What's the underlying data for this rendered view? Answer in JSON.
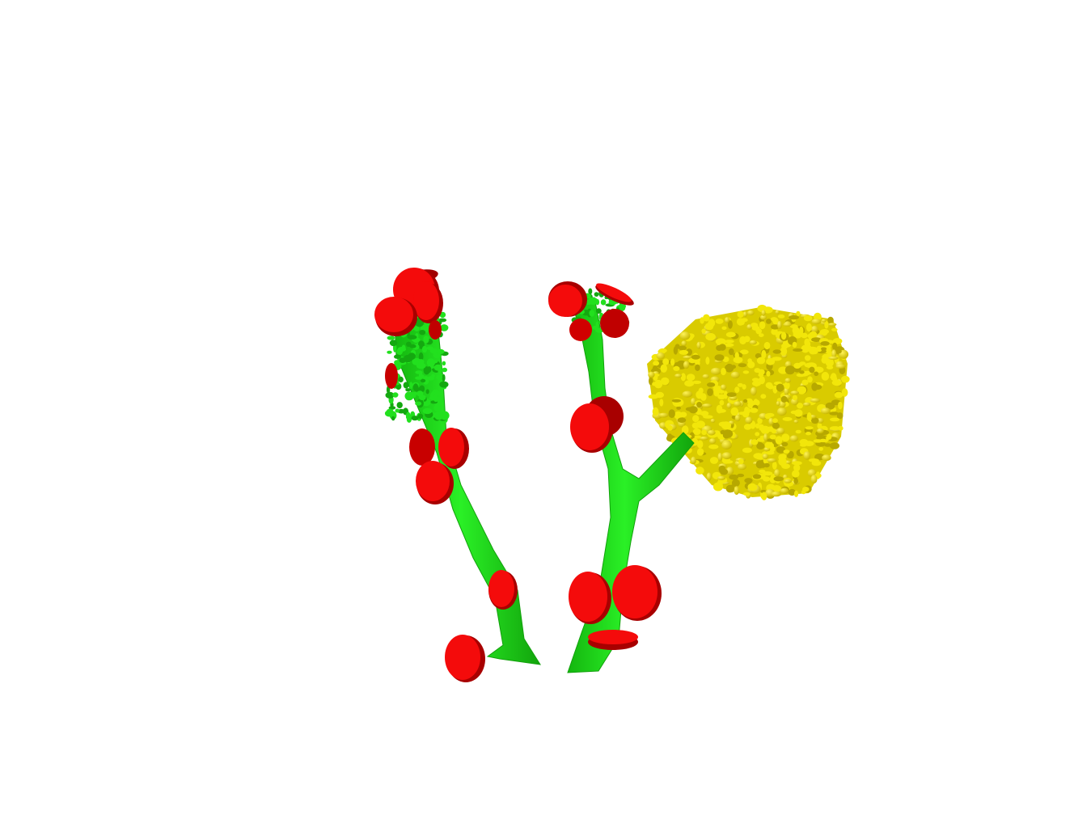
{
  "scene": {
    "background": "#ffffff",
    "colors": {
      "dendrite": "#22e01e",
      "dendrite_shade": "#14a810",
      "synapse": "#f40b0b",
      "synapse_rim": "#a80000",
      "cluster": "#f2e60a",
      "cluster_shade": "#b7a800"
    },
    "objects": [
      "left-dendrite",
      "right-dendrite",
      "synapse-discs",
      "yellow-particle-cluster"
    ]
  }
}
